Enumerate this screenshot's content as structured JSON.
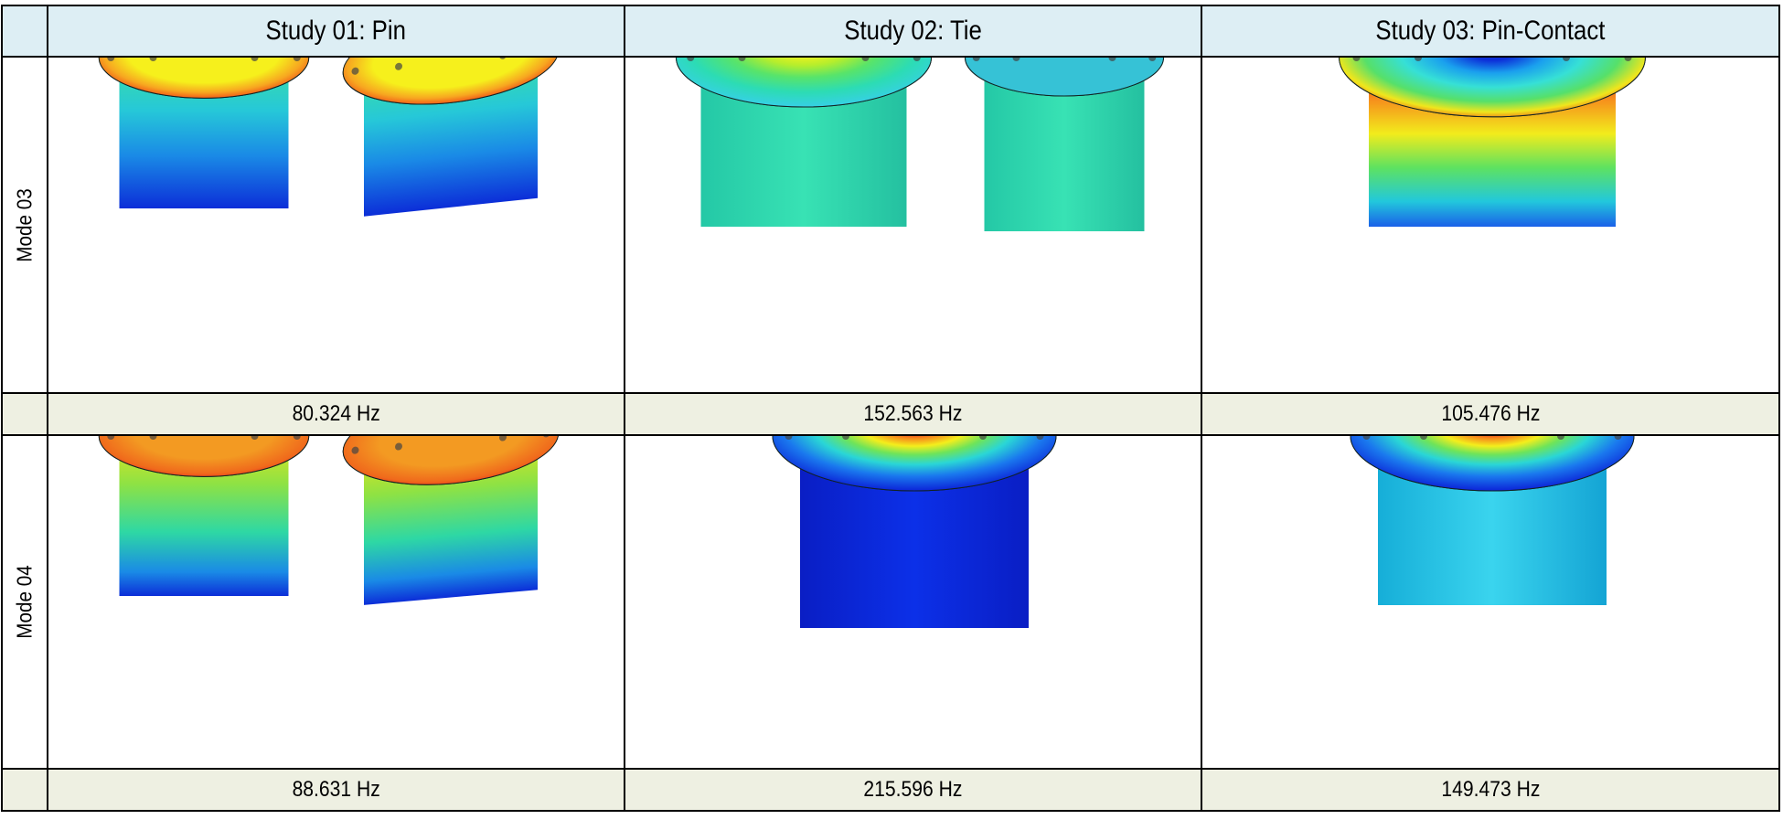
{
  "table": {
    "headers": [
      "Study 01: Pin",
      "Study 02: Tie",
      "Study 03: Pin-Contact"
    ],
    "rows": [
      {
        "label": "Mode 03",
        "frequencies": [
          "80.324 Hz",
          "152.563 Hz",
          "105.476 Hz"
        ]
      },
      {
        "label": "Mode 04",
        "frequencies": [
          "88.631 Hz",
          "215.596 Hz",
          "149.473 Hz"
        ]
      }
    ]
  }
}
